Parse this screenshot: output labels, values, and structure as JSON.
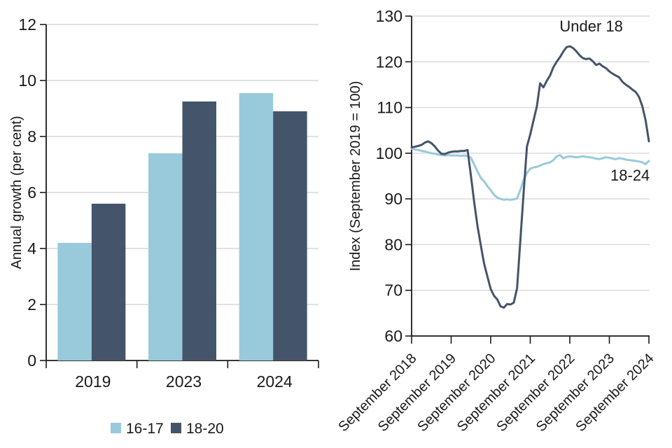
{
  "page": {
    "background": "#ffffff"
  },
  "colors": {
    "light_blue": "#98cadb",
    "dark_slate": "#44546a",
    "grid": "#d9d9d9",
    "axis": "#1a1a1a",
    "text": "#1a1a1a"
  },
  "chart_data": [
    {
      "id": "bar",
      "type": "bar",
      "title": "",
      "xlabel": "",
      "ylabel": "Annual growth (per cent)",
      "ylim": [
        0,
        12
      ],
      "yticks": [
        0,
        2,
        4,
        6,
        8,
        10,
        12
      ],
      "grid": "horizontal",
      "legend_position": "bottom",
      "categories": [
        "2019",
        "2023",
        "2024"
      ],
      "series": [
        {
          "name": "16-17",
          "color": "#98cadb",
          "values": [
            4.2,
            7.4,
            9.55
          ]
        },
        {
          "name": "18-20",
          "color": "#44546a",
          "values": [
            5.6,
            9.25,
            8.9
          ]
        }
      ]
    },
    {
      "id": "line",
      "type": "line",
      "title": "",
      "xlabel": "",
      "ylabel": "Index (September 2019 = 100)",
      "ylim": [
        60,
        130
      ],
      "yticks": [
        60,
        70,
        80,
        90,
        100,
        110,
        120,
        130
      ],
      "grid": "horizontal",
      "x_tick_labels": [
        "September 2018",
        "September 2019",
        "September 2020",
        "September 2021",
        "September 2022",
        "September 2023",
        "September 2024"
      ],
      "x_months_per_tick": 12,
      "x_start": "September 2018",
      "x_end": "September 2024",
      "series": [
        {
          "name": "Under 18",
          "color": "#44546a",
          "values": [
            101.3,
            101.4,
            101.6,
            101.8,
            102.3,
            102.6,
            102.2,
            101.5,
            100.6,
            99.9,
            99.8,
            100.1,
            100.3,
            100.4,
            100.4,
            100.5,
            100.5,
            100.7,
            95.0,
            89.2,
            84.0,
            79.8,
            75.8,
            73.0,
            70.3,
            68.8,
            68.0,
            66.5,
            66.2,
            67.0,
            66.9,
            67.3,
            70.5,
            81.0,
            91.5,
            101.5,
            104.1,
            107.2,
            110.2,
            115.3,
            114.4,
            115.8,
            117.0,
            118.8,
            120.0,
            121.0,
            122.2,
            123.2,
            123.4,
            123.0,
            122.3,
            121.4,
            120.8,
            120.6,
            120.7,
            120.1,
            119.3,
            119.6,
            119.0,
            118.6,
            117.9,
            117.4,
            117.0,
            116.6,
            115.6,
            115.0,
            114.5,
            113.9,
            113.4,
            112.3,
            110.3,
            107.2,
            102.6
          ]
        },
        {
          "name": "18-24",
          "color": "#98cadb",
          "values": [
            101.0,
            100.8,
            100.7,
            100.5,
            100.4,
            100.2,
            100.0,
            99.9,
            99.7,
            99.6,
            99.5,
            99.6,
            99.5,
            99.5,
            99.5,
            99.4,
            99.5,
            99.4,
            99.0,
            97.5,
            96.0,
            94.6,
            93.8,
            92.8,
            91.9,
            90.9,
            90.3,
            90.0,
            89.8,
            89.9,
            89.8,
            89.9,
            90.1,
            92.0,
            94.2,
            95.7,
            96.6,
            96.9,
            97.0,
            97.3,
            97.6,
            97.8,
            98.0,
            98.5,
            99.3,
            99.6,
            98.9,
            99.2,
            99.3,
            99.2,
            99.1,
            99.2,
            99.3,
            99.2,
            99.1,
            99.0,
            98.8,
            98.7,
            98.9,
            99.1,
            99.0,
            98.8,
            98.7,
            98.9,
            98.8,
            98.6,
            98.5,
            98.4,
            98.3,
            98.2,
            98.0,
            97.6,
            98.3
          ]
        }
      ],
      "annotations": [
        {
          "text": "Under 18",
          "month": 54.5,
          "value": 126.6
        },
        {
          "text": "18-24",
          "month": 66.3,
          "value": 94.0
        }
      ]
    }
  ]
}
